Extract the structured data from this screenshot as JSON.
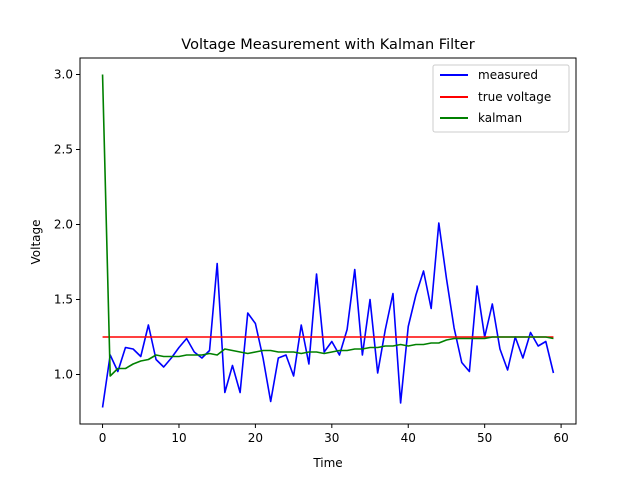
{
  "chart_data": {
    "type": "line",
    "title": "Voltage Measurement with Kalman Filter",
    "xlabel": "Time",
    "ylabel": "Voltage",
    "xlim": [
      -2.95,
      61.95
    ],
    "ylim": [
      0.67,
      3.11
    ],
    "xticks": [
      0,
      10,
      20,
      30,
      40,
      50,
      60
    ],
    "yticks": [
      1.0,
      1.5,
      2.0,
      2.5,
      3.0
    ],
    "grid": false,
    "legend_position": "top-right",
    "x": [
      0,
      1,
      2,
      3,
      4,
      5,
      6,
      7,
      8,
      9,
      10,
      11,
      12,
      13,
      14,
      15,
      16,
      17,
      18,
      19,
      20,
      21,
      22,
      23,
      24,
      25,
      26,
      27,
      28,
      29,
      30,
      31,
      32,
      33,
      34,
      35,
      36,
      37,
      38,
      39,
      40,
      41,
      42,
      43,
      44,
      45,
      46,
      47,
      48,
      49,
      50,
      51,
      52,
      53,
      54,
      55,
      56,
      57,
      58,
      59
    ],
    "series": [
      {
        "name": "measured",
        "color": "#0000ff",
        "values": [
          0.78,
          1.13,
          1.02,
          1.18,
          1.17,
          1.12,
          1.33,
          1.1,
          1.05,
          1.11,
          1.18,
          1.24,
          1.15,
          1.11,
          1.16,
          1.74,
          0.88,
          1.06,
          0.88,
          1.41,
          1.34,
          1.11,
          0.82,
          1.11,
          1.13,
          0.99,
          1.33,
          1.07,
          1.67,
          1.15,
          1.22,
          1.13,
          1.3,
          1.7,
          1.13,
          1.5,
          1.01,
          1.3,
          1.54,
          0.81,
          1.32,
          1.53,
          1.69,
          1.44,
          2.01,
          1.64,
          1.31,
          1.08,
          1.02,
          1.59,
          1.25,
          1.47,
          1.17,
          1.03,
          1.25,
          1.11,
          1.28,
          1.19,
          1.22,
          1.01
        ]
      },
      {
        "name": "true voltage",
        "color": "#ff0000",
        "values": [
          1.25,
          1.25,
          1.25,
          1.25,
          1.25,
          1.25,
          1.25,
          1.25,
          1.25,
          1.25,
          1.25,
          1.25,
          1.25,
          1.25,
          1.25,
          1.25,
          1.25,
          1.25,
          1.25,
          1.25,
          1.25,
          1.25,
          1.25,
          1.25,
          1.25,
          1.25,
          1.25,
          1.25,
          1.25,
          1.25,
          1.25,
          1.25,
          1.25,
          1.25,
          1.25,
          1.25,
          1.25,
          1.25,
          1.25,
          1.25,
          1.25,
          1.25,
          1.25,
          1.25,
          1.25,
          1.25,
          1.25,
          1.25,
          1.25,
          1.25,
          1.25,
          1.25,
          1.25,
          1.25,
          1.25,
          1.25,
          1.25,
          1.25,
          1.25,
          1.25
        ]
      },
      {
        "name": "kalman",
        "color": "#008000",
        "values": [
          3.0,
          0.99,
          1.04,
          1.04,
          1.07,
          1.09,
          1.1,
          1.13,
          1.12,
          1.12,
          1.12,
          1.13,
          1.13,
          1.13,
          1.14,
          1.13,
          1.17,
          1.16,
          1.15,
          1.14,
          1.15,
          1.16,
          1.16,
          1.15,
          1.15,
          1.15,
          1.14,
          1.15,
          1.15,
          1.14,
          1.15,
          1.16,
          1.16,
          1.17,
          1.17,
          1.18,
          1.18,
          1.19,
          1.19,
          1.2,
          1.19,
          1.2,
          1.2,
          1.21,
          1.21,
          1.23,
          1.24,
          1.24,
          1.24,
          1.24,
          1.24,
          1.25,
          1.25,
          1.25,
          1.25,
          1.25,
          1.25,
          1.25,
          1.25,
          1.24
        ]
      }
    ]
  }
}
